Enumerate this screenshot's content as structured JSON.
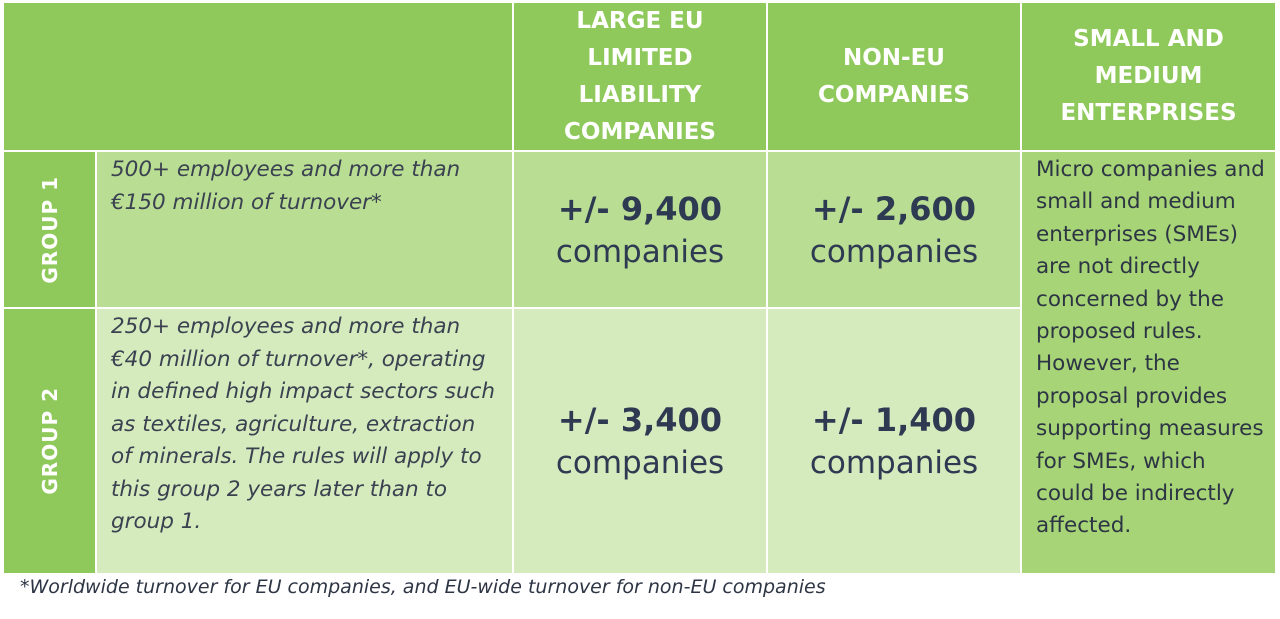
{
  "header": {
    "columns": [
      "LARGE EU LIMITED LIABILITY COMPANIES",
      "NON-EU COMPANIES",
      "SMALL AND MEDIUM ENTERPRISES"
    ]
  },
  "rows": [
    {
      "group": "GROUP 1",
      "description": "500+ employees and more than €150 million of turnover*",
      "values": [
        {
          "number": "+/- 9,400",
          "unit": "companies"
        },
        {
          "number": "+/- 2,600",
          "unit": "companies"
        }
      ]
    },
    {
      "group": "GROUP 2",
      "description": "250+ employees and more than €40 million of turnover*, operating in defined high impact sectors such as textiles, agriculture, extraction of minerals. The rules will apply to this group 2 years later than to group 1.",
      "values": [
        {
          "number": "+/- 3,400",
          "unit": "companies"
        },
        {
          "number": "+/- 1,400",
          "unit": "companies"
        }
      ]
    }
  ],
  "sme_note": "Micro companies and small and medium enterprises (SMEs) are not directly concerned by the proposed rules. However, the proposal provides supporting measures for SMEs, which could be indirectly affected.",
  "footnote": "*Worldwide turnover for EU companies, and EU-wide turnover for non-EU companies"
}
